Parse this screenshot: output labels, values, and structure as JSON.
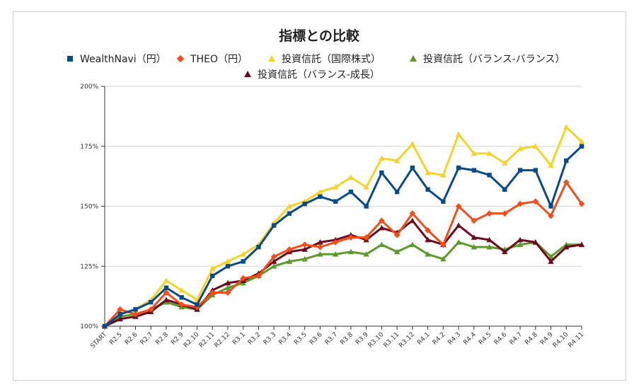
{
  "chart_data": {
    "type": "line",
    "title": "指標との比較",
    "xlabel": "",
    "ylabel": "",
    "ylim": [
      1.0,
      2.0
    ],
    "yticks": [
      "100%",
      "125%",
      "150%",
      "175%",
      "200%"
    ],
    "grid": true,
    "legend_position": "top",
    "categories": [
      "START",
      "R2.5",
      "R2.6",
      "R2.7",
      "R2.8",
      "R2.9",
      "R2.10",
      "R2.11",
      "R2.12",
      "R3.1",
      "R3.2",
      "R3.3",
      "R3.4",
      "R3.5",
      "R3.6",
      "R3.7",
      "R3.8",
      "R3.9",
      "R3.10",
      "R3.11",
      "R3.12",
      "R4.1",
      "R4.2",
      "R4.3",
      "R4.4",
      "R4.5",
      "R4.6",
      "R4.7",
      "R4.8",
      "R4.9",
      "R4.10",
      "R4.11"
    ],
    "series": [
      {
        "name": "WealthNavi（円）",
        "color": "#0b4a86",
        "marker": "square",
        "values": [
          1.0,
          1.05,
          1.07,
          1.1,
          1.16,
          1.12,
          1.09,
          1.21,
          1.25,
          1.27,
          1.33,
          1.42,
          1.47,
          1.51,
          1.54,
          1.52,
          1.56,
          1.5,
          1.64,
          1.56,
          1.66,
          1.57,
          1.52,
          1.66,
          1.65,
          1.63,
          1.57,
          1.65,
          1.65,
          1.5,
          1.69,
          1.75
        ]
      },
      {
        "name": "THEO（円）",
        "color": "#f04e1a",
        "marker": "diamond",
        "values": [
          1.0,
          1.07,
          1.05,
          1.07,
          1.14,
          1.09,
          1.08,
          1.14,
          1.14,
          1.2,
          1.21,
          1.29,
          1.32,
          1.34,
          1.33,
          1.35,
          1.37,
          1.37,
          1.44,
          1.38,
          1.47,
          1.4,
          1.34,
          1.5,
          1.44,
          1.47,
          1.47,
          1.51,
          1.52,
          1.46,
          1.6,
          1.51
        ]
      },
      {
        "name": "投資信託（国際株式）",
        "color": "#f5d327",
        "marker": "triangle",
        "values": [
          1.0,
          1.05,
          1.07,
          1.11,
          1.19,
          1.15,
          1.11,
          1.24,
          1.27,
          1.3,
          1.34,
          1.43,
          1.5,
          1.52,
          1.56,
          1.58,
          1.62,
          1.58,
          1.7,
          1.69,
          1.76,
          1.64,
          1.63,
          1.8,
          1.72,
          1.72,
          1.68,
          1.74,
          1.75,
          1.67,
          1.83,
          1.77
        ]
      },
      {
        "name": "投資信託（バランス-バランス）",
        "color": "#5b9a2b",
        "marker": "triangle",
        "values": [
          1.0,
          1.04,
          1.05,
          1.07,
          1.1,
          1.08,
          1.07,
          1.13,
          1.16,
          1.18,
          1.21,
          1.25,
          1.27,
          1.28,
          1.3,
          1.3,
          1.31,
          1.3,
          1.34,
          1.31,
          1.34,
          1.3,
          1.28,
          1.35,
          1.33,
          1.33,
          1.32,
          1.34,
          1.35,
          1.29,
          1.34,
          1.34
        ]
      },
      {
        "name": "投資信託（バランス-成長）",
        "color": "#6e0a1e",
        "marker": "triangle",
        "values": [
          1.0,
          1.03,
          1.04,
          1.06,
          1.11,
          1.09,
          1.07,
          1.15,
          1.18,
          1.19,
          1.22,
          1.27,
          1.31,
          1.32,
          1.35,
          1.36,
          1.38,
          1.36,
          1.41,
          1.39,
          1.44,
          1.36,
          1.34,
          1.42,
          1.37,
          1.36,
          1.31,
          1.36,
          1.35,
          1.27,
          1.33,
          1.34
        ]
      }
    ]
  }
}
